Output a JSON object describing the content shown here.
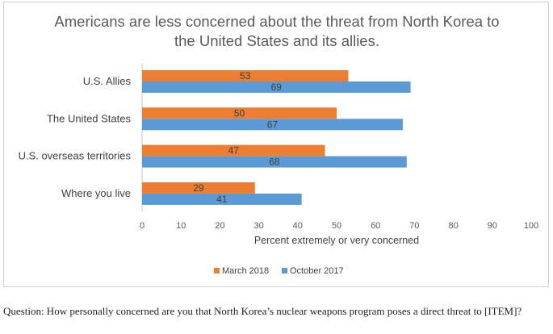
{
  "chart_data": {
    "type": "bar",
    "orientation": "horizontal",
    "title": "Americans are less concerned about the threat from North Korea to the United States and its allies.",
    "title_lines": [
      "Americans are less concerned about the threat from North Korea to",
      "the United States and its allies."
    ],
    "categories": [
      "U.S. Allies",
      "The United States",
      "U.S. overseas territories",
      "Where you live"
    ],
    "series": [
      {
        "name": "March 2018",
        "values": [
          53,
          50,
          47,
          29
        ],
        "color": "#ED7D31"
      },
      {
        "name": "October 2017",
        "values": [
          69,
          67,
          68,
          41
        ],
        "color": "#5B9BD5"
      }
    ],
    "xlabel": "Percent extremely or very concerned",
    "ylabel": "",
    "xlim": [
      0,
      100
    ],
    "xticks": [
      0,
      10,
      20,
      30,
      40,
      50,
      60,
      70,
      80,
      90,
      100
    ],
    "grid": false,
    "legend_position": "bottom"
  },
  "footnote": "Question: How personally concerned are you that North Korea’s nuclear weapons program poses a direct threat to [ITEM]?"
}
